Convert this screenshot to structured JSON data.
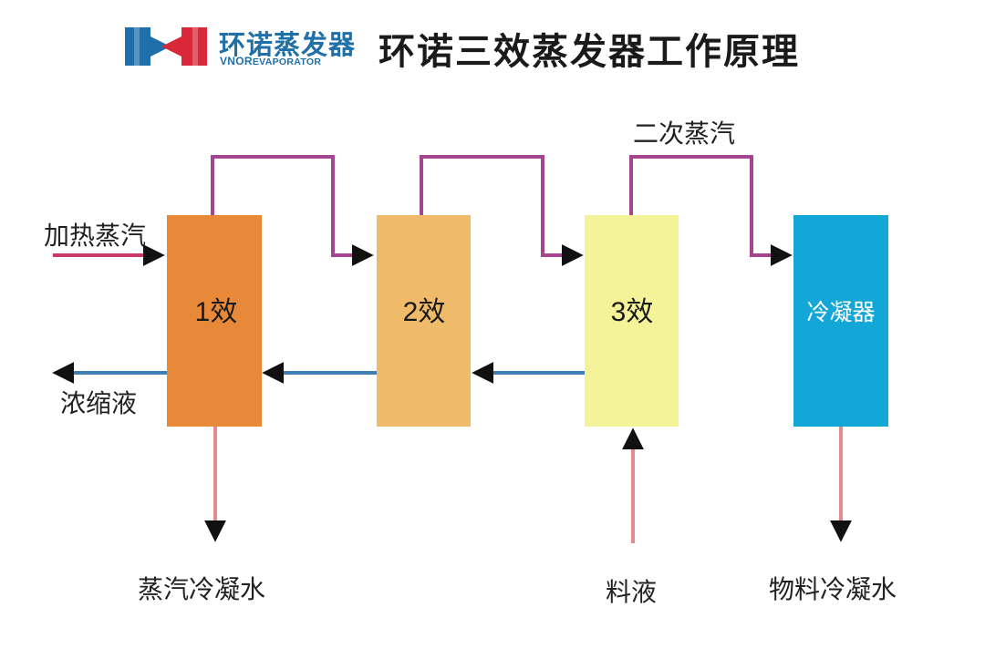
{
  "header": {
    "brand_cn": "环诺蒸发器",
    "brand_en_strong": "VNOR",
    "brand_en_rest": "EVAPORATOR",
    "title": "环诺三效蒸发器工作原理"
  },
  "units": {
    "effect1": "1效",
    "effect2": "2效",
    "effect3": "3效",
    "condenser": "冷凝器"
  },
  "flows": {
    "heating_steam": "加热蒸汽",
    "secondary_steam": "二次蒸汽",
    "concentrate": "浓缩液",
    "steam_condensate": "蒸汽冷凝水",
    "feed_liquid": "料液",
    "material_condensate": "物料冷凝水"
  },
  "colors": {
    "effect1": "#e8893a",
    "effect2": "#efbb6b",
    "effect3": "#f4f39a",
    "condenser": "#13a7d8",
    "steam_line": "#a3458f",
    "heating_line": "#c8386a",
    "concentrate_line": "#3f7fb8",
    "condensate_line": "#e58b8d",
    "logo_blue": "#1f6fa8",
    "logo_red": "#d9283a"
  }
}
